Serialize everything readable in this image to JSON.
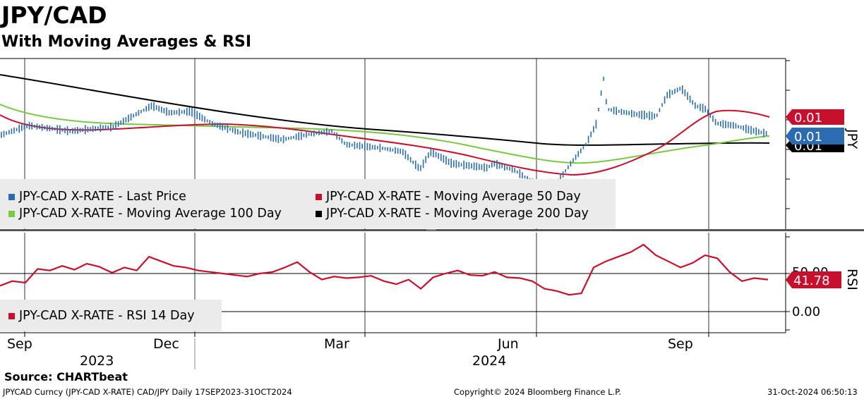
{
  "header": {
    "title": "JPY/CAD",
    "subtitle": "With Moving Averages & RSI"
  },
  "chart_data": {
    "type": "line",
    "x_tick_labels": [
      "Sep",
      "Dec",
      "Mar",
      "Jun",
      "Sep"
    ],
    "year_labels": [
      "2023",
      "2024"
    ],
    "price_panel": {
      "axis_label": "JPY",
      "badges": [
        "0.01",
        "0.01",
        "0.01"
      ],
      "legend": [
        "JPY-CAD X-RATE - Last Price",
        "JPY-CAD X-RATE - Moving Average 50 Day",
        "JPY-CAD X-RATE - Moving Average 100 Day",
        "JPY-CAD X-RATE - Moving Average 200 Day"
      ],
      "series_colors": [
        "#2b6cb0",
        "#c8102e",
        "#7ac943",
        "#000000"
      ]
    },
    "rsi_panel": {
      "axis_label": "RSI",
      "legend": [
        "JPY-CAD X-RATE - RSI 14 Day"
      ],
      "y_tick_labels": [
        "50.00",
        "0.00"
      ],
      "reference_lines": [
        50,
        0
      ],
      "last_value_label": "41.78",
      "color": "#c8102e",
      "ylim": [
        0,
        100
      ],
      "x": [
        0,
        1.6,
        3.3,
        4.9,
        6.5,
        8.1,
        9.7,
        11.3,
        12.9,
        14.6,
        16.2,
        17.8,
        19.4,
        21,
        22.6,
        24.2,
        25.8,
        27.4,
        29,
        30.6,
        32.2,
        33.8,
        35.5,
        37.1,
        38.7,
        40.3,
        41.9,
        43.5,
        45.1,
        46.7,
        48.3,
        50,
        51.6,
        53.2,
        54.8,
        56.4,
        58,
        59.6,
        61.2,
        62.8,
        64.4,
        66,
        67.7,
        69.3,
        70.9,
        72.5,
        74.1,
        75.7,
        77.3,
        78.9,
        80.5,
        82.1,
        83.8,
        85.4,
        87,
        88.6,
        90.2,
        91.8,
        93.4,
        95,
        96.6,
        98.2,
        100
      ],
      "values": [
        34,
        40,
        38,
        56,
        54,
        60,
        55,
        63,
        59,
        51,
        58,
        54,
        72,
        66,
        60,
        58,
        54,
        52,
        50,
        48,
        46,
        50,
        52,
        58,
        65,
        52,
        42,
        46,
        44,
        45,
        47,
        40,
        36,
        42,
        30,
        45,
        50,
        54,
        48,
        47,
        52,
        45,
        44,
        40,
        30,
        27,
        22,
        24,
        58,
        66,
        72,
        78,
        88,
        74,
        66,
        58,
        64,
        74,
        70,
        52,
        40,
        44,
        42
      ]
    }
  },
  "footer": {
    "source": "Source: CHARTbeat",
    "left": "JPYCAD Curncy (JPY-CAD X-RATE) CAD/JPY  Daily 17SEP2023-31OCT2024",
    "center": "Copyright© 2024 Bloomberg Finance L.P.",
    "right": "31-Oct-2024 06:50:13"
  }
}
